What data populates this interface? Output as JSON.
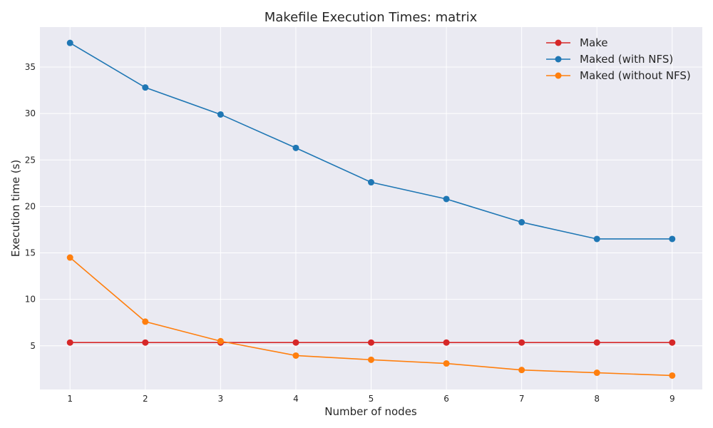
{
  "chart_data": {
    "type": "line",
    "title": "Makefile Execution Times: matrix",
    "xlabel": "Number of nodes",
    "ylabel": "Execution time (s)",
    "x": [
      1,
      2,
      3,
      4,
      5,
      6,
      7,
      8,
      9
    ],
    "xticks": [
      1,
      2,
      3,
      4,
      5,
      6,
      7,
      8,
      9
    ],
    "yticks": [
      5,
      10,
      15,
      20,
      25,
      30,
      35
    ],
    "xlim": [
      0.6,
      9.4
    ],
    "ylim": [
      0.3,
      39.3
    ],
    "grid": true,
    "legend_position": "top-right",
    "background": "#eaeaf2",
    "series": [
      {
        "name": "Make",
        "color": "#d62728",
        "values": [
          5.35,
          5.35,
          5.35,
          5.35,
          5.35,
          5.35,
          5.35,
          5.35,
          5.35
        ]
      },
      {
        "name": "Maked (with NFS)",
        "color": "#1f77b4",
        "values": [
          37.6,
          32.8,
          29.9,
          26.3,
          22.6,
          20.8,
          18.3,
          16.5,
          16.5
        ]
      },
      {
        "name": "Maked (without NFS)",
        "color": "#ff7f0e",
        "values": [
          14.5,
          7.6,
          5.5,
          3.95,
          3.5,
          3.1,
          2.4,
          2.1,
          1.8
        ]
      }
    ]
  }
}
